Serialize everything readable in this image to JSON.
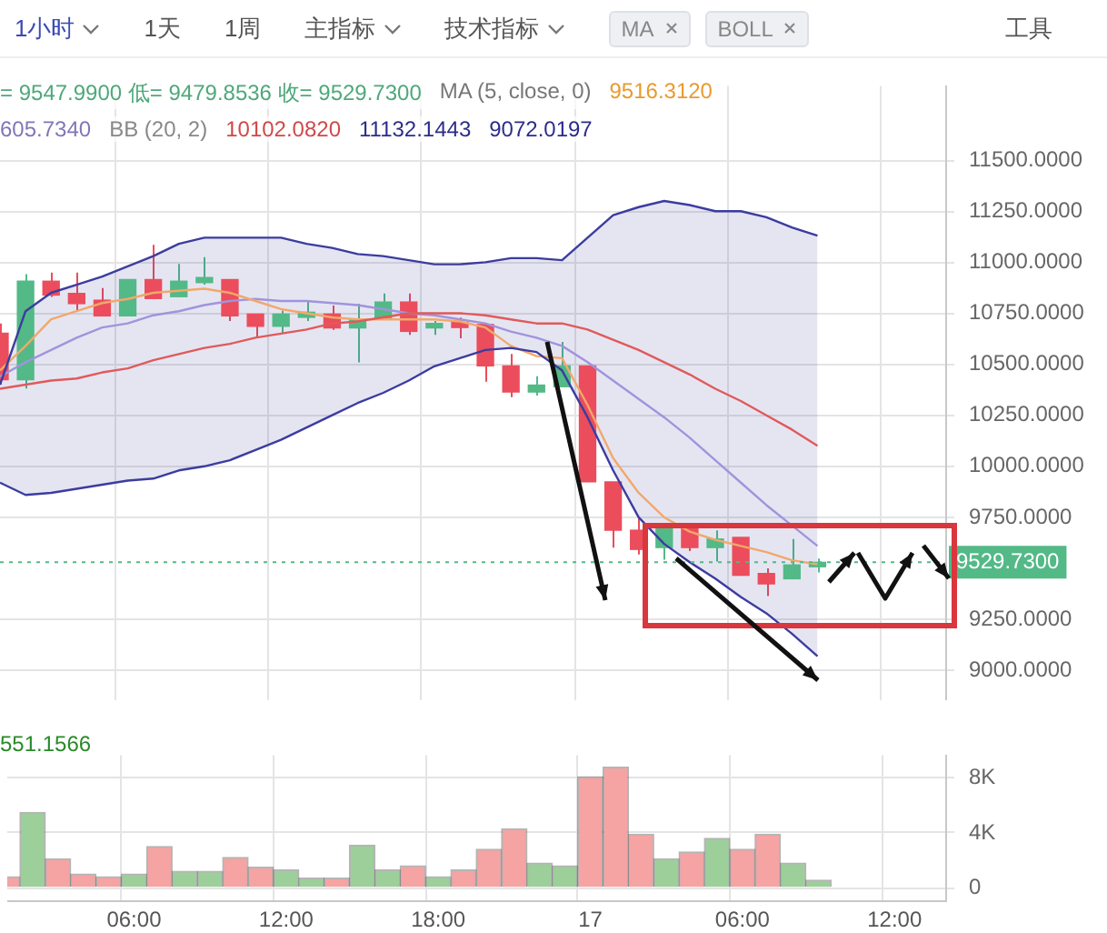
{
  "chart_data": [
    {
      "type": "candlestick",
      "categories": [
        null,
        null,
        null,
        null,
        null,
        null,
        null,
        null,
        null,
        null,
        null,
        null,
        null,
        null,
        null,
        null,
        null,
        null,
        null,
        null,
        null,
        null,
        null,
        null,
        null,
        null,
        null,
        null,
        null,
        null,
        null,
        null,
        null,
        null,
        null,
        null,
        null,
        null
      ],
      "ohlc": [
        [
          10652,
          10700,
          10400,
          10424
        ],
        [
          10424,
          10941,
          10381,
          10907
        ],
        [
          10907,
          10949,
          10830,
          10839
        ],
        [
          10847,
          10949,
          10763,
          10797
        ],
        [
          10814,
          10873,
          10737,
          10737
        ],
        [
          10737,
          10915,
          10737,
          10915
        ],
        [
          10915,
          11085,
          10822,
          10822
        ],
        [
          10831,
          10992,
          10831,
          10907
        ],
        [
          10900,
          11025,
          10890,
          10925
        ],
        [
          10915,
          10915,
          10712,
          10737
        ],
        [
          10746,
          10746,
          10636,
          10686
        ],
        [
          10686,
          10763,
          10652,
          10746
        ],
        [
          10730,
          10814,
          10712,
          10755
        ],
        [
          10746,
          10788,
          10669,
          10678
        ],
        [
          10678,
          10797,
          10509,
          10720
        ],
        [
          10720,
          10847,
          10720,
          10805
        ],
        [
          10805,
          10847,
          10644,
          10661
        ],
        [
          10678,
          10712,
          10644,
          10700
        ],
        [
          10705,
          10729,
          10627,
          10680
        ],
        [
          10695,
          10695,
          10415,
          10492
        ],
        [
          10492,
          10551,
          10339,
          10364
        ],
        [
          10364,
          10441,
          10347,
          10398
        ],
        [
          10390,
          10610,
          10390,
          10492
        ],
        [
          10492,
          10492,
          9924,
          9924
        ],
        [
          9924,
          9924,
          9602,
          9687
        ],
        [
          9687,
          9746,
          9568,
          9593
        ],
        [
          9602,
          9695,
          9542,
          9695
        ],
        [
          9703,
          9720,
          9585,
          9602
        ],
        [
          9602,
          9686,
          9534,
          9644
        ],
        [
          9652,
          9652,
          9466,
          9466
        ],
        [
          9475,
          9500,
          9364,
          9424
        ],
        [
          9449,
          9644,
          9449,
          9517
        ],
        [
          9508,
          9547.99,
          9479.85,
          9529.73
        ],
        null,
        null,
        null,
        null,
        null
      ],
      "colors": [
        "#eb4d5c",
        "#53b987",
        "#eb4d5c",
        "#eb4d5c",
        "#eb4d5c",
        "#53b987",
        "#eb4d5c",
        "#53b987",
        "#53b987",
        "#eb4d5c",
        "#eb4d5c",
        "#53b987",
        "#53b987",
        "#eb4d5c",
        "#53b987",
        "#53b987",
        "#eb4d5c",
        "#53b987",
        "#eb4d5c",
        "#eb4d5c",
        "#eb4d5c",
        "#53b987",
        "#53b987",
        "#eb4d5c",
        "#eb4d5c",
        "#eb4d5c",
        "#53b987",
        "#eb4d5c",
        "#53b987",
        "#eb4d5c",
        "#eb4d5c",
        "#53b987",
        "#53b987",
        null,
        null,
        null,
        null,
        null
      ],
      "series": [
        {
          "type": "line",
          "color": "#3c3ca0",
          "values": [
            10400,
            10760,
            10850,
            10890,
            10930,
            10980,
            11030,
            11090,
            11120,
            11120,
            11120,
            11120,
            11090,
            11070,
            11040,
            11030,
            11010,
            10990,
            10990,
            11000,
            11020,
            11020,
            11010,
            11120,
            11230,
            11270,
            11300,
            11280,
            11250,
            11250,
            11220,
            11170,
            11130,
            null,
            null,
            null,
            null,
            null
          ]
        },
        {
          "type": "line",
          "color": "#3c3ca0",
          "values": [
            9920,
            9860,
            9870,
            9890,
            9910,
            9930,
            9940,
            9980,
            10000,
            10030,
            10080,
            10130,
            10190,
            10250,
            10310,
            10360,
            10420,
            10490,
            10530,
            10570,
            10580,
            10560,
            10470,
            10240,
            9980,
            9750,
            9620,
            9530,
            9450,
            9360,
            9280,
            9180,
            9070,
            null,
            null,
            null,
            null,
            null
          ]
        },
        {
          "type": "line",
          "color": "#e05a5a",
          "values": [
            10380,
            10400,
            10420,
            10430,
            10460,
            10480,
            10520,
            10550,
            10580,
            10600,
            10630,
            10650,
            10670,
            10700,
            10710,
            10730,
            10750,
            10750,
            10750,
            10740,
            10720,
            10700,
            10700,
            10670,
            10620,
            10570,
            10510,
            10450,
            10380,
            10320,
            10250,
            10180,
            10100,
            null,
            null,
            null,
            null,
            null
          ],
          "upper": [
            10400,
            10760,
            10850,
            10890,
            10930,
            10980,
            11030,
            11090,
            11120,
            11120,
            11120,
            11120,
            11090,
            11070,
            11040,
            11030,
            11010,
            10990,
            10990,
            11000,
            11020,
            11020,
            11010,
            11120,
            11230,
            11270,
            11300,
            11280,
            11250,
            11250,
            11220,
            11170,
            11130,
            null,
            null,
            null,
            null,
            null
          ],
          "lower": [
            9920,
            9860,
            9870,
            9890,
            9910,
            9930,
            9940,
            9980,
            10000,
            10030,
            10080,
            10130,
            10190,
            10250,
            10310,
            10360,
            10420,
            10490,
            10530,
            10570,
            10580,
            10560,
            10470,
            10240,
            9980,
            9750,
            9620,
            9530,
            9450,
            9360,
            9280,
            9180,
            9070,
            null,
            null,
            null,
            null,
            null
          ]
        },
        {
          "type": "line",
          "color": "#f2a86a",
          "values": [
            10470,
            10590,
            10720,
            10760,
            10800,
            10820,
            10850,
            10860,
            10870,
            10850,
            10810,
            10770,
            10750,
            10730,
            10720,
            10720,
            10720,
            10720,
            10710,
            10680,
            10590,
            10540,
            10530,
            10300,
            10040,
            9870,
            9750,
            9680,
            9640,
            9610,
            9580,
            9540,
            9520,
            null,
            null,
            null,
            null,
            null
          ]
        },
        {
          "type": "line",
          "color": "#a094dc",
          "values": [
            10440,
            10510,
            10570,
            10630,
            10680,
            10700,
            10740,
            10760,
            10790,
            10810,
            10820,
            10810,
            10810,
            10800,
            10790,
            10770,
            10750,
            10740,
            10720,
            10700,
            10660,
            10630,
            10590,
            10510,
            10420,
            10330,
            10240,
            10140,
            10030,
            9920,
            9810,
            9710,
            9610,
            null,
            null,
            null,
            null,
            null
          ]
        }
      ],
      "ylim": [
        8856,
        11864
      ],
      "yticks": [
        {
          "value": 9000,
          "label": "9000.0000"
        },
        {
          "value": 9250,
          "label": "9250.0000"
        },
        {
          "value": 9750,
          "label": "9750.0000"
        },
        {
          "value": 10000,
          "label": "10000.0000"
        },
        {
          "value": 10250,
          "label": "10250.0000"
        },
        {
          "value": 10500,
          "label": "10500.0000"
        },
        {
          "value": 10750,
          "label": "10750.0000"
        },
        {
          "value": 11000,
          "label": "11000.0000"
        },
        {
          "value": 11250,
          "label": "11250.0000"
        },
        {
          "value": 11500,
          "label": "11500.0000"
        }
      ],
      "tick_labels": "y",
      "grid": true,
      "ref_lines": [
        {
          "axis": "y",
          "value": 9529.73,
          "label": "9529.7300",
          "color": "#53b987",
          "line_style": "dotted"
        }
      ],
      "annotations": [
        "1小时",
        "1天",
        "1周",
        "主指标",
        "技术指标",
        "MA",
        "BOLL",
        "工具",
        "= 9547.9900 低= 9479.8536 收= 9529.7300",
        "MA (5, close, 0)",
        "9516.3120",
        "605.7340",
        "BB (20, 2)",
        "10102.0820",
        "11132.1443",
        "9072.0197"
      ]
    },
    {
      "type": "bar",
      "categories": [
        null,
        null,
        null,
        null,
        null,
        "06:00",
        null,
        null,
        null,
        null,
        null,
        "12:00",
        null,
        null,
        null,
        null,
        null,
        "18:00",
        null,
        null,
        null,
        null,
        null,
        "17",
        null,
        null,
        null,
        null,
        null,
        "06:00",
        null,
        null,
        null,
        null,
        null,
        "12:00",
        null,
        null
      ],
      "values": [
        800,
        5500,
        2100,
        1000,
        800,
        1000,
        3000,
        1200,
        1200,
        2200,
        1500,
        1300,
        700,
        700,
        3100,
        1300,
        1600,
        800,
        1300,
        2800,
        4300,
        1800,
        1600,
        8100,
        8800,
        3900,
        2100,
        2600,
        3600,
        2800,
        3900,
        1800,
        550,
        null,
        null,
        null,
        null,
        null
      ],
      "colors": [
        "#f5a3a3",
        "#9ccf9a",
        "#f5a3a3",
        "#f5a3a3",
        "#f5a3a3",
        "#9ccf9a",
        "#f5a3a3",
        "#9ccf9a",
        "#9ccf9a",
        "#f5a3a3",
        "#f5a3a3",
        "#9ccf9a",
        "#9ccf9a",
        "#f5a3a3",
        "#9ccf9a",
        "#9ccf9a",
        "#f5a3a3",
        "#9ccf9a",
        "#f5a3a3",
        "#f5a3a3",
        "#f5a3a3",
        "#9ccf9a",
        "#9ccf9a",
        "#f5a3a3",
        "#f5a3a3",
        "#f5a3a3",
        "#9ccf9a",
        "#f5a3a3",
        "#9ccf9a",
        "#f5a3a3",
        "#f5a3a3",
        "#9ccf9a",
        "#9ccf9a",
        null,
        null,
        null,
        null,
        null
      ],
      "ylim": [
        -920,
        9680
      ],
      "yticks": [
        0,
        {
          "value": 4000,
          "label": "4K"
        },
        {
          "value": 8000,
          "label": "8K"
        }
      ],
      "grid": true,
      "annotations": [
        "551.1566"
      ]
    }
  ]
}
